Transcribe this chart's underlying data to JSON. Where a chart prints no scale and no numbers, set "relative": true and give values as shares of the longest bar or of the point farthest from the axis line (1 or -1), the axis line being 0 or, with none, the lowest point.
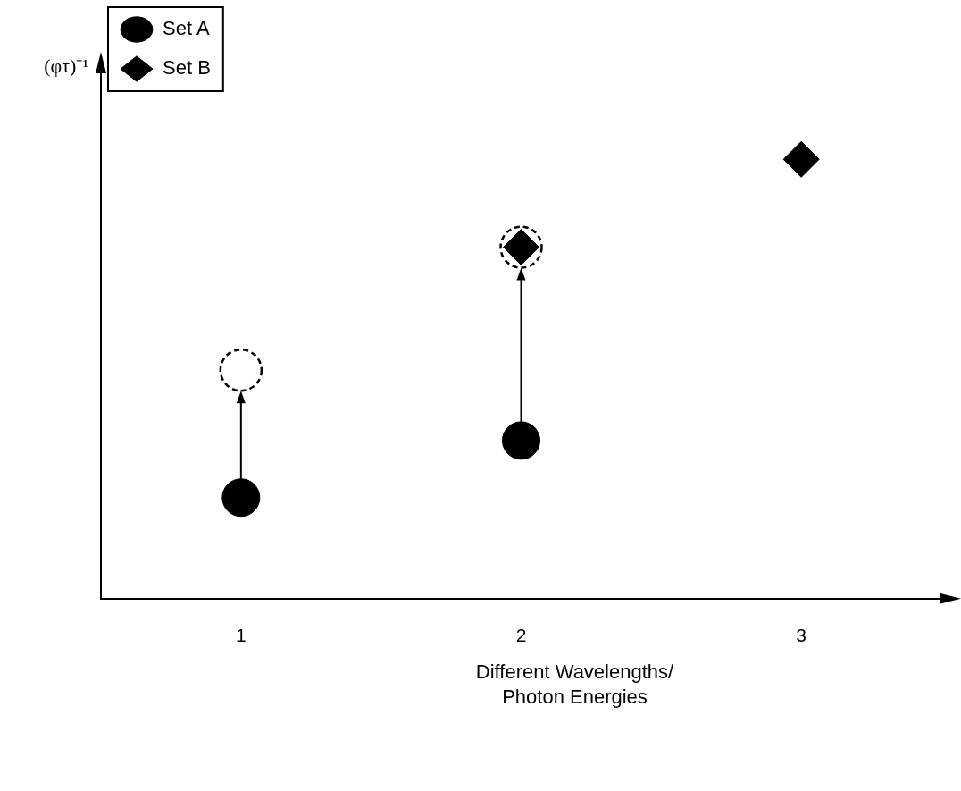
{
  "chart_data": {
    "type": "scatter",
    "relative": true,
    "xlabel": "Different Wavelengths/\nPhoton Energies",
    "ylabel": "(φτ)⁻¹",
    "categories": [
      "1",
      "2",
      "3"
    ],
    "legend": "top left",
    "grid": false,
    "tick_labels": "x",
    "series": [
      {
        "name": "Set A",
        "color": "#000000",
        "marker": "circle",
        "values": [
          0.23,
          0.36,
          null
        ]
      },
      {
        "name": "Set B",
        "color": "#000000",
        "marker": "diamond",
        "values": [
          null,
          0.8,
          1
        ]
      },
      {
        "color": "#000000",
        "marker": "circle",
        "line_style": "dashed",
        "values": [
          0.52,
          0.8,
          null
        ]
      }
    ]
  }
}
